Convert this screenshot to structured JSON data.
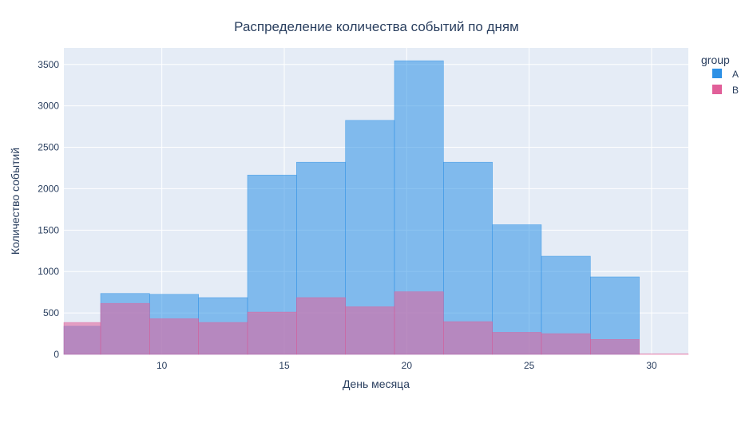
{
  "chart_data": {
    "type": "bar",
    "barmode": "overlay",
    "title": "Распределение количества событий по дням",
    "xlabel": "День месяца",
    "ylabel": "Количество событий",
    "xlim": [
      6,
      31.5
    ],
    "ylim": [
      0,
      3700
    ],
    "xticks": [
      10,
      15,
      20,
      25,
      30
    ],
    "yticks": [
      0,
      500,
      1000,
      1500,
      2000,
      2500,
      3000,
      3500
    ],
    "grid": true,
    "legend": {
      "title": "group",
      "placement": "top-right"
    },
    "bin_edges": [
      5.5,
      7.5,
      9.5,
      11.5,
      13.5,
      15.5,
      17.5,
      19.5,
      21.5,
      23.5,
      25.5,
      27.5,
      29.5,
      31.5
    ],
    "series": [
      {
        "name": "A",
        "color": "#2E91E5",
        "values": [
          340,
          735,
          725,
          685,
          2165,
          2320,
          2825,
          3545,
          2320,
          1565,
          1185,
          935,
          0
        ]
      },
      {
        "name": "B",
        "color": "#E15F99",
        "values": [
          385,
          615,
          430,
          385,
          510,
          685,
          575,
          755,
          395,
          265,
          250,
          180,
          5
        ]
      }
    ],
    "colors": {
      "plot_bg": "#E5ECF6",
      "grid": "#ffffff",
      "text": "#2a3f5f"
    }
  }
}
